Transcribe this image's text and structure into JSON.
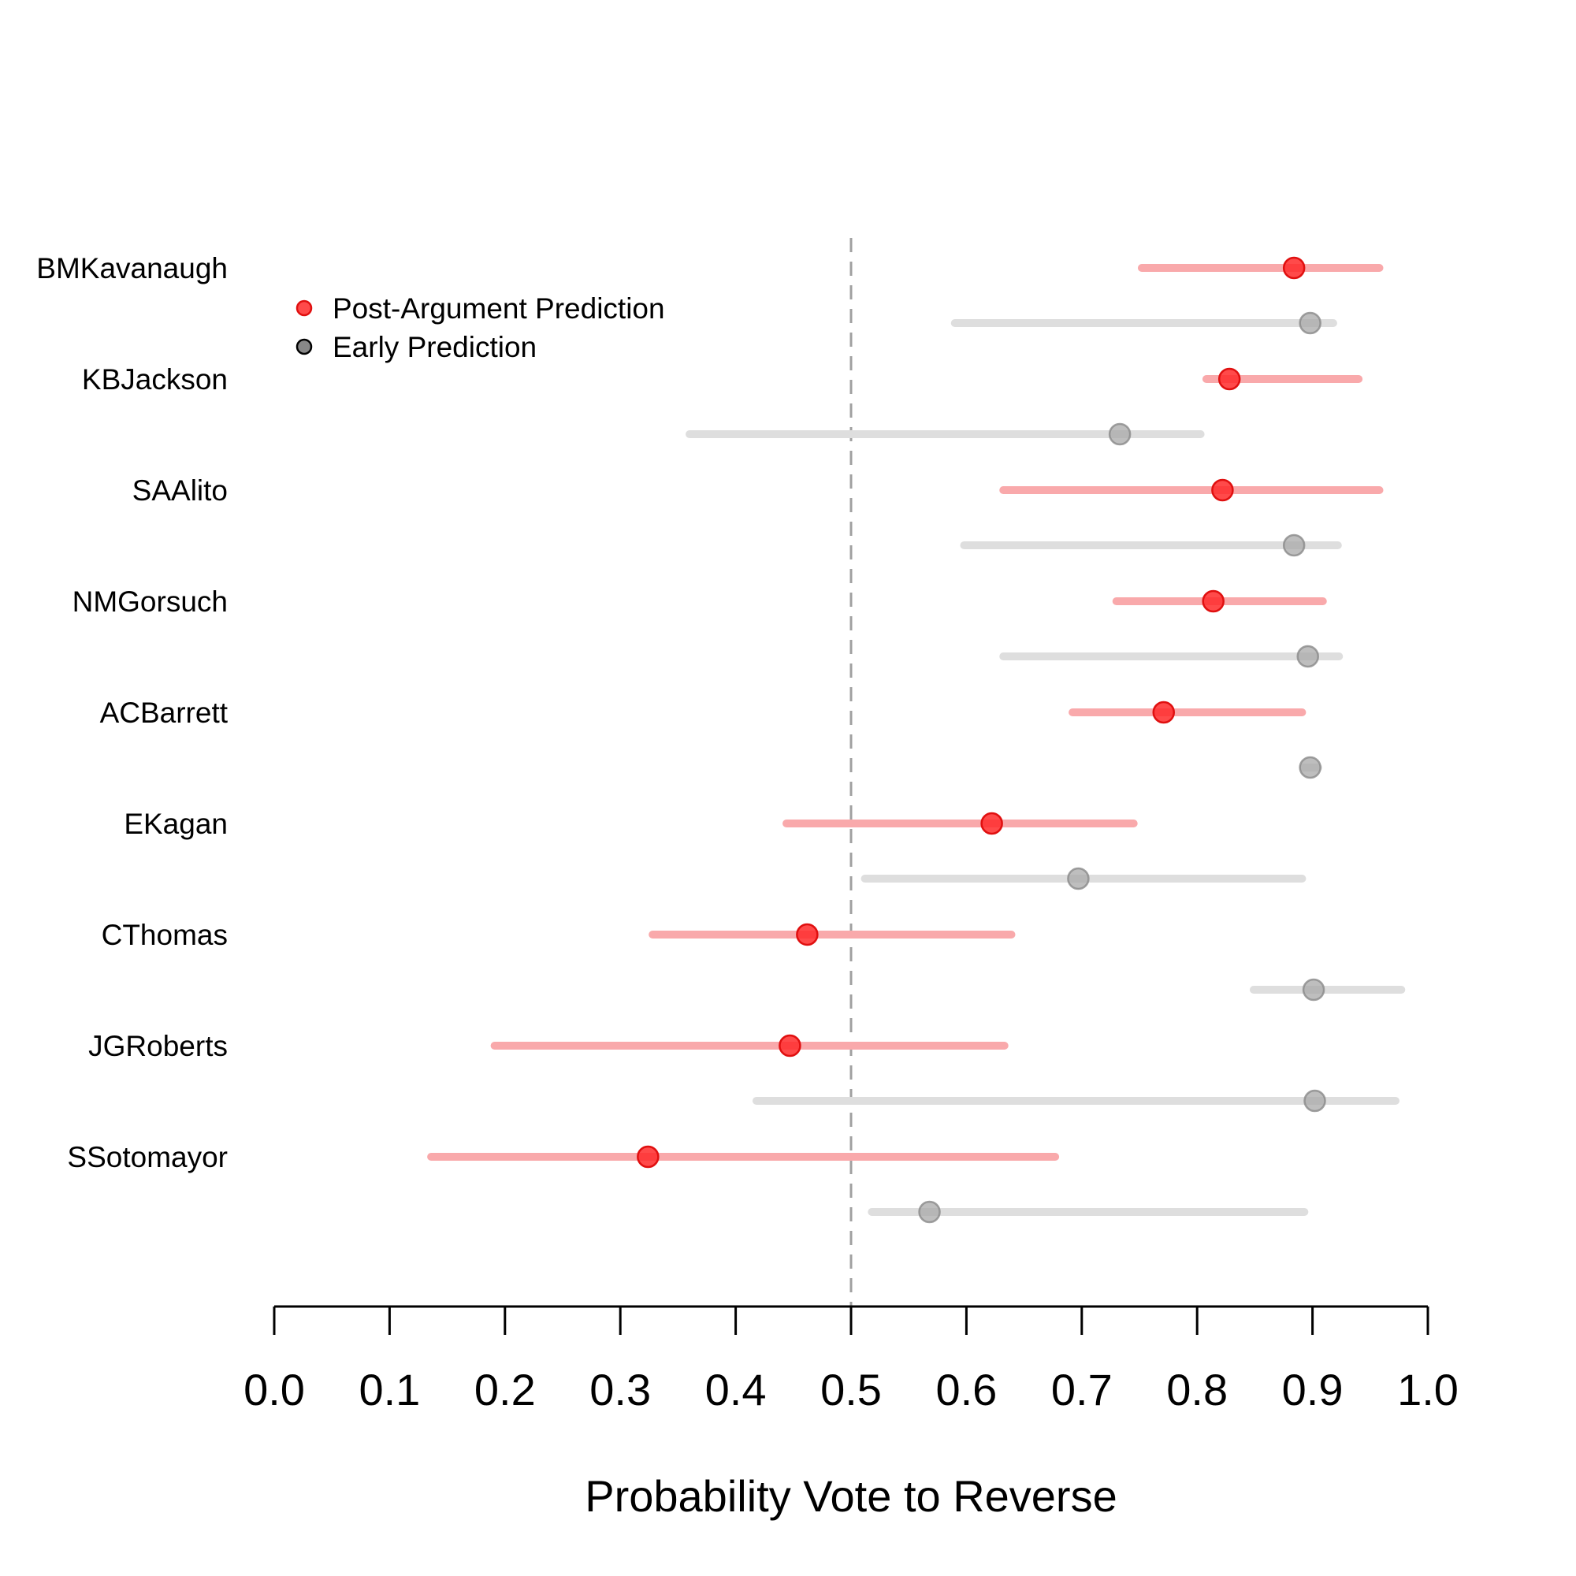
{
  "chart_data": {
    "type": "dot-interval",
    "xlabel": "Probability Vote to Reverse",
    "xlim": [
      0.0,
      1.0
    ],
    "x_ticks": [
      0.0,
      0.1,
      0.2,
      0.3,
      0.4,
      0.5,
      0.6,
      0.7,
      0.8,
      0.9,
      1.0
    ],
    "x_tick_labels": [
      "0.0",
      "0.1",
      "0.2",
      "0.3",
      "0.4",
      "0.5",
      "0.6",
      "0.7",
      "0.8",
      "0.9",
      "1.0"
    ],
    "reference_line": 0.5,
    "legend": {
      "placement": "top-left",
      "entries": [
        {
          "label": "Post-Argument Prediction",
          "color": "#ff0000",
          "series": "post"
        },
        {
          "label": "Early Prediction",
          "color": "#000000",
          "series": "early"
        }
      ]
    },
    "colors": {
      "post_point": "#ff2a2a",
      "post_interval": "#f9a9ab",
      "early_point": "#a8a8a8",
      "early_interval": "#dedede",
      "ref_line": "#a0a0a0"
    },
    "justices": [
      {
        "name": "BMKavanaugh",
        "post": {
          "estimate": 0.884,
          "low": 0.752,
          "high": 0.958
        },
        "early": {
          "estimate": 0.898,
          "low": 0.59,
          "high": 0.918
        }
      },
      {
        "name": "KBJackson",
        "post": {
          "estimate": 0.828,
          "low": 0.808,
          "high": 0.94
        },
        "early": {
          "estimate": 0.733,
          "low": 0.36,
          "high": 0.803
        }
      },
      {
        "name": "SAAlito",
        "post": {
          "estimate": 0.822,
          "low": 0.632,
          "high": 0.958
        },
        "early": {
          "estimate": 0.884,
          "low": 0.598,
          "high": 0.922
        }
      },
      {
        "name": "NMGorsuch",
        "post": {
          "estimate": 0.814,
          "low": 0.73,
          "high": 0.909
        },
        "early": {
          "estimate": 0.896,
          "low": 0.632,
          "high": 0.923
        }
      },
      {
        "name": "ACBarrett",
        "post": {
          "estimate": 0.771,
          "low": 0.692,
          "high": 0.891
        },
        "early": {
          "estimate": 0.898,
          "low": 0.892,
          "high": 0.905
        }
      },
      {
        "name": "EKagan",
        "post": {
          "estimate": 0.622,
          "low": 0.444,
          "high": 0.745
        },
        "early": {
          "estimate": 0.697,
          "low": 0.512,
          "high": 0.891
        }
      },
      {
        "name": "CThomas",
        "post": {
          "estimate": 0.462,
          "low": 0.328,
          "high": 0.639
        },
        "early": {
          "estimate": 0.901,
          "low": 0.849,
          "high": 0.977
        }
      },
      {
        "name": "JGRoberts",
        "post": {
          "estimate": 0.447,
          "low": 0.191,
          "high": 0.633
        },
        "early": {
          "estimate": 0.902,
          "low": 0.418,
          "high": 0.972
        }
      },
      {
        "name": "SSotomayor",
        "post": {
          "estimate": 0.324,
          "low": 0.136,
          "high": 0.677
        },
        "early": {
          "estimate": 0.568,
          "low": 0.518,
          "high": 0.893
        }
      }
    ]
  }
}
